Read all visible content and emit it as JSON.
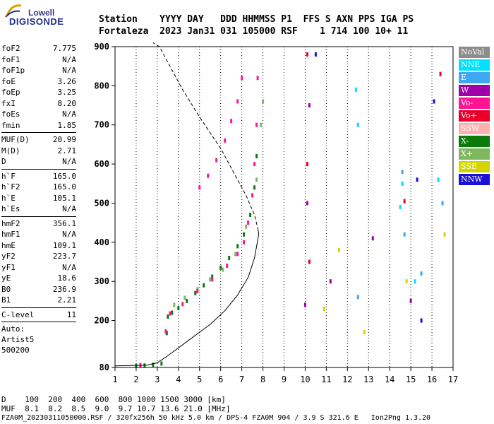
{
  "logo": {
    "top": "Lowell",
    "main": "DIGISONDE"
  },
  "header": {
    "line1": "Station    YYYY DAY   DDD HHMMSS P1  FFS S AXN PPS IGA PS",
    "line2": "Fortaleza  2023 Jan31 031 105000 RSF    1 714 100 10+ 11"
  },
  "params": {
    "group1": [
      {
        "name": "foF2",
        "value": "7.775"
      },
      {
        "name": "foF1",
        "value": "N/A"
      },
      {
        "name": "foF1p",
        "value": "N/A"
      },
      {
        "name": "foE",
        "value": "3.26"
      },
      {
        "name": "foEp",
        "value": "3.25"
      },
      {
        "name": "fxI",
        "value": "8.20"
      },
      {
        "name": "foEs",
        "value": "N/A"
      },
      {
        "name": "fmin",
        "value": "1.85"
      }
    ],
    "group2": [
      {
        "name": "MUF(D)",
        "value": "20.99"
      },
      {
        "name": "M(D)",
        "value": "2.71"
      },
      {
        "name": "D",
        "value": "N/A"
      }
    ],
    "group3": [
      {
        "name": "h`F",
        "value": "165.0"
      },
      {
        "name": "h`F2",
        "value": "165.0"
      },
      {
        "name": "h`E",
        "value": "105.1"
      },
      {
        "name": "h`Es",
        "value": "N/A"
      }
    ],
    "group4": [
      {
        "name": "hmF2",
        "value": "356.1"
      },
      {
        "name": "hmF1",
        "value": "N/A"
      },
      {
        "name": "hmE",
        "value": "109.1"
      },
      {
        "name": "yF2",
        "value": "223.7"
      },
      {
        "name": "yF1",
        "value": "N/A"
      },
      {
        "name": "yE",
        "value": "18.6"
      },
      {
        "name": "B0",
        "value": "236.9"
      },
      {
        "name": "B1",
        "value": "2.21"
      }
    ],
    "group5": [
      {
        "name": "C-level",
        "value": "11"
      }
    ],
    "auto": [
      "Auto:",
      "Artist5",
      "500200"
    ]
  },
  "legend": [
    {
      "label": "NoVal",
      "color": "#8c8c8c"
    },
    {
      "label": "NNE",
      "color": "#00e0ff"
    },
    {
      "label": "E",
      "color": "#3fa6f0"
    },
    {
      "label": "W",
      "color": "#a000a8"
    },
    {
      "label": "Vo-",
      "color": "#ff1493"
    },
    {
      "label": "Vo+",
      "color": "#e8002a"
    },
    {
      "label": "SSW",
      "color": "#ffb0b0"
    },
    {
      "label": "X-",
      "color": "#0a7a0a"
    },
    {
      "label": "X+",
      "color": "#7fb860"
    },
    {
      "label": "SSE",
      "color": "#d4d400"
    },
    {
      "label": "NNW",
      "color": "#1a10d8"
    }
  ],
  "footer": {
    "d_line": "D    100  200  400  600  800 1000 1500 3000 [km]",
    "muf_line": "MUF  8.1  8.2  8.5  9.0  9.7 10.7 13.6 21.0 [MHz]",
    "info": "FZA0M_20230311050000.RSF / 320fx256h 50 kHz 5.0 km / DPS-4 FZA0M 904 / 3.9 S 321.6 E   Ion2Png 1.3.20"
  },
  "chart_data": {
    "type": "scatter",
    "title": "",
    "xlabel": "",
    "ylabel": "",
    "xlim": [
      1,
      17
    ],
    "ylim": [
      80,
      900
    ],
    "xticks": [
      1,
      2,
      3,
      4,
      5,
      6,
      7,
      8,
      9,
      10,
      11,
      12,
      13,
      14,
      15,
      16,
      17
    ],
    "yticks": [
      80,
      200,
      300,
      400,
      500,
      600,
      700,
      800,
      900
    ],
    "grid": "vertical dotted lines at integer MHz",
    "series": [
      {
        "name": "X-",
        "color": "#0a7a0a",
        "points": [
          [
            2.0,
            84
          ],
          [
            2.4,
            85
          ],
          [
            2.8,
            87
          ],
          [
            3.2,
            90
          ],
          [
            3.45,
            168
          ],
          [
            3.5,
            210
          ],
          [
            3.7,
            220
          ],
          [
            4.0,
            232
          ],
          [
            4.4,
            250
          ],
          [
            4.8,
            270
          ],
          [
            5.2,
            290
          ],
          [
            5.6,
            312
          ],
          [
            6.0,
            335
          ],
          [
            6.4,
            360
          ],
          [
            6.8,
            390
          ],
          [
            7.1,
            420
          ],
          [
            7.4,
            470
          ],
          [
            7.6,
            540
          ],
          [
            7.7,
            620
          ]
        ]
      },
      {
        "name": "X+",
        "color": "#7fb860",
        "points": [
          [
            3.8,
            240
          ],
          [
            4.3,
            258
          ],
          [
            4.9,
            280
          ],
          [
            5.5,
            305
          ],
          [
            6.1,
            330
          ],
          [
            6.7,
            370
          ],
          [
            7.2,
            440
          ],
          [
            7.7,
            560
          ],
          [
            7.9,
            700
          ],
          [
            8.0,
            760
          ]
        ]
      },
      {
        "name": "Vo-",
        "color": "#ff1493",
        "points": [
          [
            2.2,
            86
          ],
          [
            3.4,
            172
          ],
          [
            3.6,
            218
          ],
          [
            4.2,
            242
          ],
          [
            4.9,
            275
          ],
          [
            5.6,
            305
          ],
          [
            6.3,
            340
          ],
          [
            6.8,
            370
          ],
          [
            7.1,
            400
          ],
          [
            7.3,
            450
          ],
          [
            7.5,
            520
          ],
          [
            7.6,
            600
          ],
          [
            7.7,
            700
          ],
          [
            7.75,
            820
          ],
          [
            5.0,
            540
          ],
          [
            5.4,
            570
          ],
          [
            5.8,
            610
          ],
          [
            6.2,
            660
          ],
          [
            6.5,
            710
          ],
          [
            6.8,
            760
          ],
          [
            7.0,
            820
          ]
        ]
      },
      {
        "name": "Vo+",
        "color": "#e8002a",
        "points": [
          [
            10.1,
            880
          ],
          [
            10.1,
            600
          ],
          [
            10.2,
            350
          ],
          [
            14.7,
            505
          ],
          [
            16.4,
            830
          ]
        ]
      },
      {
        "name": "W",
        "color": "#a000a8",
        "points": [
          [
            10.0,
            240
          ],
          [
            10.1,
            500
          ],
          [
            10.2,
            750
          ],
          [
            11.2,
            300
          ],
          [
            13.2,
            410
          ],
          [
            15.0,
            250
          ]
        ]
      },
      {
        "name": "NNE",
        "color": "#00e0ff",
        "points": [
          [
            12.4,
            790
          ],
          [
            12.5,
            700
          ],
          [
            14.6,
            550
          ],
          [
            14.5,
            490
          ],
          [
            15.2,
            300
          ],
          [
            16.3,
            560
          ]
        ]
      },
      {
        "name": "E",
        "color": "#3fa6f0",
        "points": [
          [
            14.6,
            580
          ],
          [
            14.7,
            420
          ],
          [
            15.5,
            320
          ],
          [
            12.5,
            260
          ],
          [
            16.5,
            500
          ]
        ]
      },
      {
        "name": "SSE",
        "color": "#d4d400",
        "points": [
          [
            11.6,
            380
          ],
          [
            10.9,
            230
          ],
          [
            12.8,
            170
          ],
          [
            14.8,
            300
          ],
          [
            16.6,
            420
          ]
        ]
      },
      {
        "name": "NNW",
        "color": "#1a10d8",
        "points": [
          [
            10.5,
            880
          ],
          [
            15.3,
            560
          ],
          [
            16.1,
            760
          ],
          [
            15.5,
            200
          ]
        ]
      }
    ],
    "lines": [
      {
        "name": "profile-solid",
        "points": [
          [
            1.0,
            84
          ],
          [
            2.5,
            86
          ],
          [
            3.0,
            92
          ],
          [
            3.5,
            110
          ],
          [
            4.5,
            150
          ],
          [
            5.5,
            190
          ],
          [
            6.2,
            225
          ],
          [
            6.8,
            265
          ],
          [
            7.3,
            310
          ],
          [
            7.6,
            360
          ],
          [
            7.8,
            420
          ],
          [
            7.78,
            430
          ]
        ]
      },
      {
        "name": "profile-dashed",
        "points": [
          [
            7.78,
            430
          ],
          [
            7.6,
            470
          ],
          [
            7.2,
            520
          ],
          [
            6.7,
            570
          ],
          [
            6.0,
            640
          ],
          [
            5.0,
            720
          ],
          [
            4.2,
            790
          ],
          [
            3.6,
            850
          ],
          [
            3.1,
            900
          ],
          [
            2.8,
            910
          ]
        ]
      }
    ]
  }
}
